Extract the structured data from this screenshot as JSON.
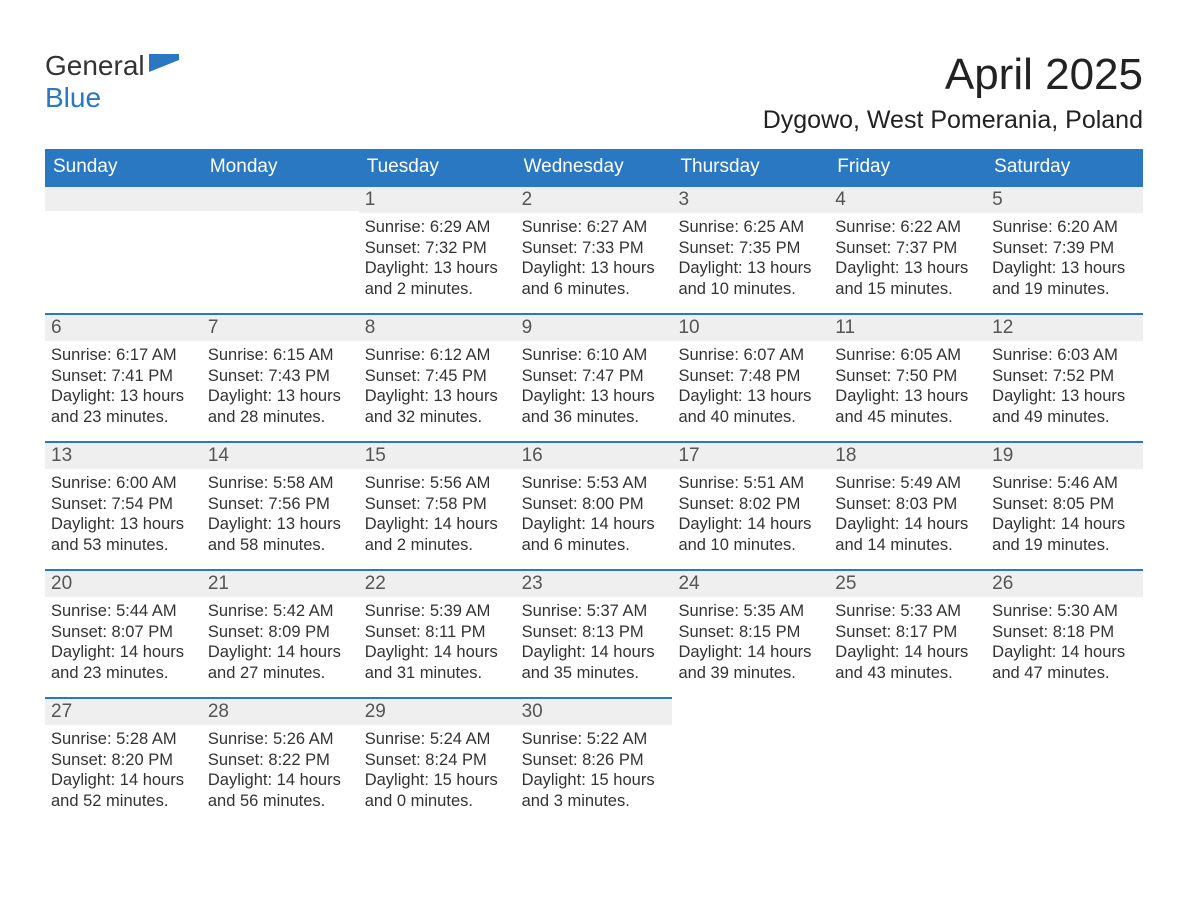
{
  "logo": {
    "word1": "General",
    "word2": "Blue",
    "accent_color": "#2a78c2"
  },
  "title": "April 2025",
  "subtitle": "Dygowo, West Pomerania, Poland",
  "colors": {
    "header_bg": "#2a78c2",
    "header_text": "#ffffff",
    "daynum_bg": "#efefef",
    "text": "#333333",
    "page_bg": "#ffffff"
  },
  "fonts": {
    "title_size": 44,
    "subtitle_size": 25,
    "weekday_size": 19,
    "body_size": 16.5
  },
  "weekdays": [
    "Sunday",
    "Monday",
    "Tuesday",
    "Wednesday",
    "Thursday",
    "Friday",
    "Saturday"
  ],
  "weeks": [
    [
      {
        "blank": true
      },
      {
        "blank": true
      },
      {
        "num": "1",
        "sunrise": "6:29 AM",
        "sunset": "7:32 PM",
        "daylight": "13 hours and 2 minutes."
      },
      {
        "num": "2",
        "sunrise": "6:27 AM",
        "sunset": "7:33 PM",
        "daylight": "13 hours and 6 minutes."
      },
      {
        "num": "3",
        "sunrise": "6:25 AM",
        "sunset": "7:35 PM",
        "daylight": "13 hours and 10 minutes."
      },
      {
        "num": "4",
        "sunrise": "6:22 AM",
        "sunset": "7:37 PM",
        "daylight": "13 hours and 15 minutes."
      },
      {
        "num": "5",
        "sunrise": "6:20 AM",
        "sunset": "7:39 PM",
        "daylight": "13 hours and 19 minutes."
      }
    ],
    [
      {
        "num": "6",
        "sunrise": "6:17 AM",
        "sunset": "7:41 PM",
        "daylight": "13 hours and 23 minutes."
      },
      {
        "num": "7",
        "sunrise": "6:15 AM",
        "sunset": "7:43 PM",
        "daylight": "13 hours and 28 minutes."
      },
      {
        "num": "8",
        "sunrise": "6:12 AM",
        "sunset": "7:45 PM",
        "daylight": "13 hours and 32 minutes."
      },
      {
        "num": "9",
        "sunrise": "6:10 AM",
        "sunset": "7:47 PM",
        "daylight": "13 hours and 36 minutes."
      },
      {
        "num": "10",
        "sunrise": "6:07 AM",
        "sunset": "7:48 PM",
        "daylight": "13 hours and 40 minutes."
      },
      {
        "num": "11",
        "sunrise": "6:05 AM",
        "sunset": "7:50 PM",
        "daylight": "13 hours and 45 minutes."
      },
      {
        "num": "12",
        "sunrise": "6:03 AM",
        "sunset": "7:52 PM",
        "daylight": "13 hours and 49 minutes."
      }
    ],
    [
      {
        "num": "13",
        "sunrise": "6:00 AM",
        "sunset": "7:54 PM",
        "daylight": "13 hours and 53 minutes."
      },
      {
        "num": "14",
        "sunrise": "5:58 AM",
        "sunset": "7:56 PM",
        "daylight": "13 hours and 58 minutes."
      },
      {
        "num": "15",
        "sunrise": "5:56 AM",
        "sunset": "7:58 PM",
        "daylight": "14 hours and 2 minutes."
      },
      {
        "num": "16",
        "sunrise": "5:53 AM",
        "sunset": "8:00 PM",
        "daylight": "14 hours and 6 minutes."
      },
      {
        "num": "17",
        "sunrise": "5:51 AM",
        "sunset": "8:02 PM",
        "daylight": "14 hours and 10 minutes."
      },
      {
        "num": "18",
        "sunrise": "5:49 AM",
        "sunset": "8:03 PM",
        "daylight": "14 hours and 14 minutes."
      },
      {
        "num": "19",
        "sunrise": "5:46 AM",
        "sunset": "8:05 PM",
        "daylight": "14 hours and 19 minutes."
      }
    ],
    [
      {
        "num": "20",
        "sunrise": "5:44 AM",
        "sunset": "8:07 PM",
        "daylight": "14 hours and 23 minutes."
      },
      {
        "num": "21",
        "sunrise": "5:42 AM",
        "sunset": "8:09 PM",
        "daylight": "14 hours and 27 minutes."
      },
      {
        "num": "22",
        "sunrise": "5:39 AM",
        "sunset": "8:11 PM",
        "daylight": "14 hours and 31 minutes."
      },
      {
        "num": "23",
        "sunrise": "5:37 AM",
        "sunset": "8:13 PM",
        "daylight": "14 hours and 35 minutes."
      },
      {
        "num": "24",
        "sunrise": "5:35 AM",
        "sunset": "8:15 PM",
        "daylight": "14 hours and 39 minutes."
      },
      {
        "num": "25",
        "sunrise": "5:33 AM",
        "sunset": "8:17 PM",
        "daylight": "14 hours and 43 minutes."
      },
      {
        "num": "26",
        "sunrise": "5:30 AM",
        "sunset": "8:18 PM",
        "daylight": "14 hours and 47 minutes."
      }
    ],
    [
      {
        "num": "27",
        "sunrise": "5:28 AM",
        "sunset": "8:20 PM",
        "daylight": "14 hours and 52 minutes."
      },
      {
        "num": "28",
        "sunrise": "5:26 AM",
        "sunset": "8:22 PM",
        "daylight": "14 hours and 56 minutes."
      },
      {
        "num": "29",
        "sunrise": "5:24 AM",
        "sunset": "8:24 PM",
        "daylight": "15 hours and 0 minutes."
      },
      {
        "num": "30",
        "sunrise": "5:22 AM",
        "sunset": "8:26 PM",
        "daylight": "15 hours and 3 minutes."
      },
      {
        "blank": true,
        "nobar": true
      },
      {
        "blank": true,
        "nobar": true
      },
      {
        "blank": true,
        "nobar": true
      }
    ]
  ],
  "labels": {
    "sunrise": "Sunrise: ",
    "sunset": "Sunset: ",
    "daylight": "Daylight: "
  }
}
